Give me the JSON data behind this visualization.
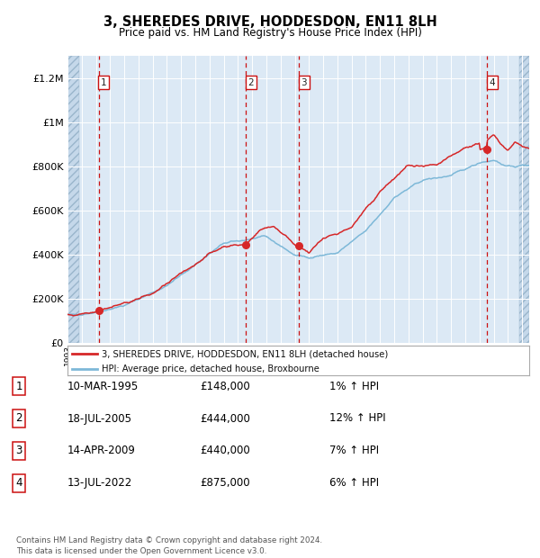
{
  "title": "3, SHEREDES DRIVE, HODDESDON, EN11 8LH",
  "subtitle": "Price paid vs. HM Land Registry's House Price Index (HPI)",
  "hpi_color": "#7db8d8",
  "price_color": "#d62728",
  "background_color": "#dce9f5",
  "ylim": [
    0,
    1300000
  ],
  "yticks": [
    0,
    200000,
    400000,
    600000,
    800000,
    1000000,
    1200000
  ],
  "ytick_labels": [
    "£0",
    "£200K",
    "£400K",
    "£600K",
    "£800K",
    "£1M",
    "£1.2M"
  ],
  "transactions": [
    {
      "num": 1,
      "date": "10-MAR-1995",
      "year": 1995.19,
      "price": 148000,
      "hpi_pct": "1%"
    },
    {
      "num": 2,
      "date": "18-JUL-2005",
      "year": 2005.54,
      "price": 444000,
      "hpi_pct": "12%"
    },
    {
      "num": 3,
      "date": "14-APR-2009",
      "year": 2009.29,
      "price": 440000,
      "hpi_pct": "7%"
    },
    {
      "num": 4,
      "date": "13-JUL-2022",
      "year": 2022.54,
      "price": 875000,
      "hpi_pct": "6%"
    }
  ],
  "legend_entries": [
    "3, SHEREDES DRIVE, HODDESDON, EN11 8LH (detached house)",
    "HPI: Average price, detached house, Broxbourne"
  ],
  "table_rows": [
    [
      "1",
      "10-MAR-1995",
      "£148,000",
      "1% ↑ HPI"
    ],
    [
      "2",
      "18-JUL-2005",
      "£444,000",
      "12% ↑ HPI"
    ],
    [
      "3",
      "14-APR-2009",
      "£440,000",
      "7% ↑ HPI"
    ],
    [
      "4",
      "13-JUL-2022",
      "£875,000",
      "6% ↑ HPI"
    ]
  ],
  "footer": "Contains HM Land Registry data © Crown copyright and database right 2024.\nThis data is licensed under the Open Government Licence v3.0.",
  "xmin": 1993.0,
  "xmax": 2025.5
}
